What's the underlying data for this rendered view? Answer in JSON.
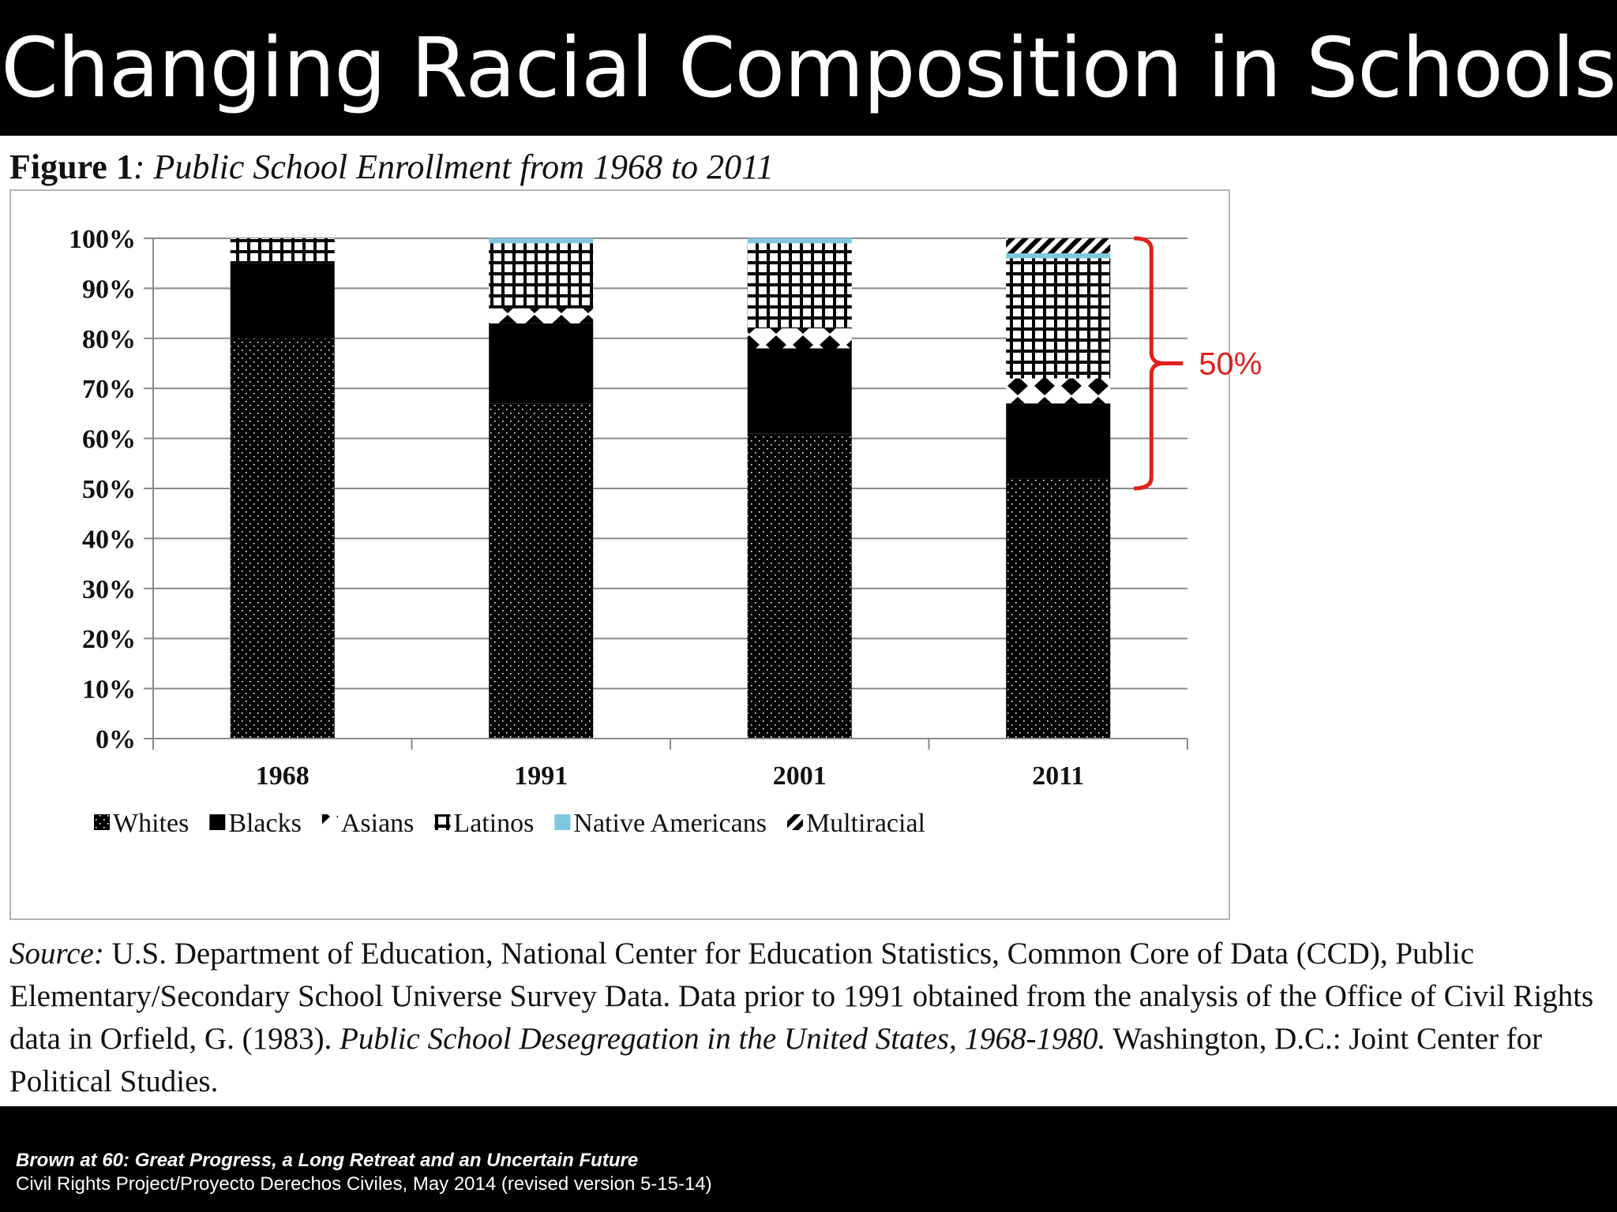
{
  "slide": {
    "title": "Changing Racial Composition in Schools"
  },
  "figure": {
    "label": "Figure 1",
    "caption": ": Public School Enrollment from 1968 to 2011"
  },
  "source": {
    "label": "Source:",
    "text1": " U.S. Department of Education, National Center for Education Statistics, Common Core of Data (CCD), Public Elementary/Secondary School Universe Survey Data. Data prior to 1991 obtained from the analysis of the Office of Civil Rights data in Orfield, G. (1983). ",
    "book": "Public School Desegregation in the United States, 1968-1980.",
    "text2": " Washington, D.C.: Joint Center for Political Studies."
  },
  "footer": {
    "line1": "Brown at 60: Great Progress, a Long Retreat and an Uncertain Future",
    "line2": "Civil Rights Project/Proyecto Derechos Civiles, May 2014 (revised version 5-15-14)"
  },
  "chart_data": {
    "type": "bar",
    "stacked": true,
    "categories": [
      "1968",
      "1991",
      "2001",
      "2011"
    ],
    "series": [
      {
        "name": "Whites",
        "pattern": "dots",
        "values": [
          80,
          67,
          61,
          52
        ]
      },
      {
        "name": "Blacks",
        "pattern": "solid",
        "values": [
          15,
          16,
          17,
          15
        ]
      },
      {
        "name": "Asians",
        "pattern": "diamonds",
        "values": [
          0,
          3,
          4,
          5
        ]
      },
      {
        "name": "Latinos",
        "pattern": "grid",
        "values": [
          5,
          13,
          17,
          24
        ]
      },
      {
        "name": "Native Americans",
        "pattern": "lightblue",
        "color": "#7ec8df",
        "values": [
          0,
          1,
          1,
          1
        ]
      },
      {
        "name": "Multiracial",
        "pattern": "diagonal",
        "values": [
          0,
          0,
          0,
          3
        ]
      }
    ],
    "yticks": [
      "0%",
      "10%",
      "20%",
      "30%",
      "40%",
      "50%",
      "60%",
      "70%",
      "80%",
      "90%",
      "100%"
    ],
    "ylim": [
      0,
      100
    ],
    "grid": true,
    "legend_position": "bottom",
    "annotation": {
      "label": "50%",
      "bar": "2011",
      "from": 50,
      "to": 100,
      "color": "#e0201b"
    }
  }
}
